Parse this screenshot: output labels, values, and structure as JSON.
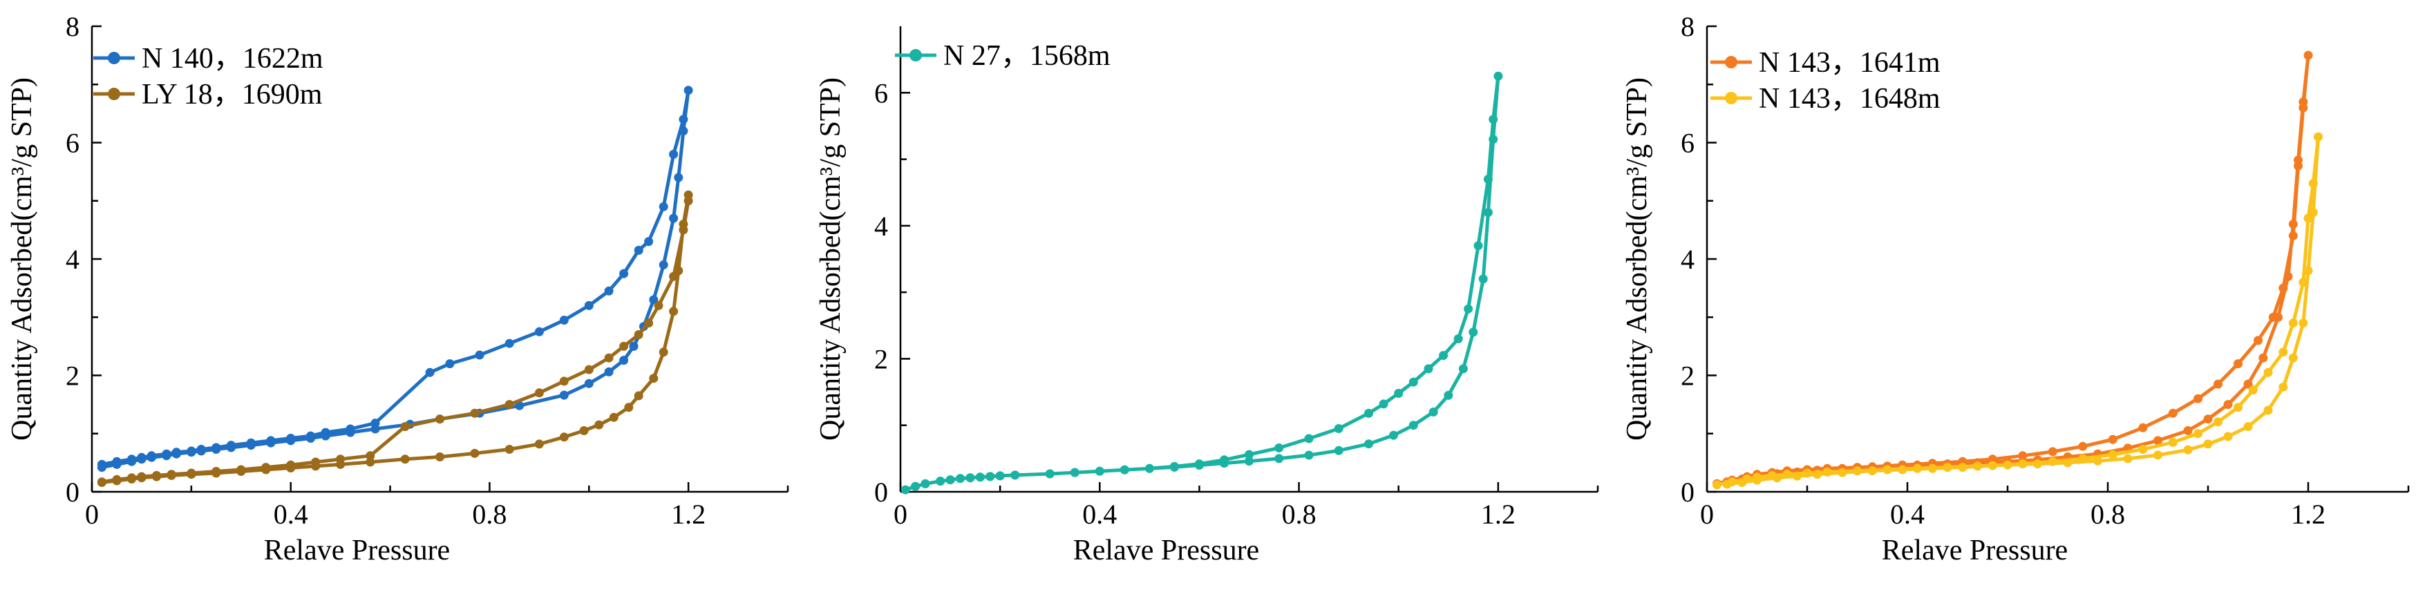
{
  "chart_data": [
    {
      "type": "line",
      "xlabel": "Relave Pressure",
      "ylabel": "Quantity Adsorbed(cm³/g STP)",
      "xlim": [
        0,
        1.4
      ],
      "ylim": [
        0,
        8
      ],
      "xticks": [
        "0",
        "0.4",
        "0.8",
        "1.2"
      ],
      "yticks": [
        "0",
        "2",
        "4",
        "6",
        "8"
      ],
      "legend_position": "top-left",
      "series": [
        {
          "name": "N 140，1622m",
          "color": "#1f6fc5",
          "x": [
            0.02,
            0.05,
            0.08,
            0.1,
            0.12,
            0.15,
            0.17,
            0.2,
            0.22,
            0.25,
            0.28,
            0.32,
            0.36,
            0.4,
            0.44,
            0.47,
            0.52,
            0.57,
            0.64,
            0.7,
            0.78,
            0.86,
            0.95,
            1.0,
            1.04,
            1.07,
            1.09,
            1.11,
            1.13,
            1.15,
            1.17,
            1.18,
            1.19,
            1.2,
            1.19,
            1.17,
            1.15,
            1.12,
            1.1,
            1.07,
            1.04,
            1.0,
            0.95,
            0.9,
            0.84,
            0.78,
            0.72,
            0.68,
            0.57,
            0.52,
            0.47,
            0.44,
            0.4,
            0.36,
            0.32,
            0.28,
            0.25,
            0.22,
            0.2,
            0.17,
            0.15,
            0.12,
            0.1,
            0.08,
            0.05,
            0.02
          ],
          "y": [
            0.42,
            0.47,
            0.52,
            0.56,
            0.59,
            0.62,
            0.65,
            0.68,
            0.7,
            0.73,
            0.76,
            0.8,
            0.84,
            0.88,
            0.92,
            0.96,
            1.02,
            1.08,
            1.16,
            1.25,
            1.35,
            1.48,
            1.66,
            1.86,
            2.06,
            2.26,
            2.5,
            2.84,
            3.3,
            3.9,
            4.7,
            5.4,
            6.2,
            6.9,
            6.4,
            5.8,
            4.9,
            4.3,
            4.15,
            3.75,
            3.45,
            3.2,
            2.95,
            2.75,
            2.55,
            2.35,
            2.2,
            2.05,
            1.18,
            1.08,
            1.02,
            0.96,
            0.92,
            0.88,
            0.84,
            0.8,
            0.76,
            0.73,
            0.7,
            0.68,
            0.65,
            0.62,
            0.59,
            0.56,
            0.52,
            0.47
          ]
        },
        {
          "name": "LY 18，1690m",
          "color": "#9c6b1a",
          "x": [
            0.02,
            0.05,
            0.08,
            0.1,
            0.13,
            0.16,
            0.2,
            0.25,
            0.3,
            0.35,
            0.4,
            0.45,
            0.5,
            0.56,
            0.63,
            0.7,
            0.77,
            0.84,
            0.9,
            0.95,
            0.99,
            1.02,
            1.05,
            1.08,
            1.1,
            1.13,
            1.15,
            1.17,
            1.18,
            1.19,
            1.2,
            1.2,
            1.19,
            1.17,
            1.14,
            1.12,
            1.1,
            1.07,
            1.04,
            1.0,
            0.95,
            0.9,
            0.84,
            0.77,
            0.7,
            0.63,
            0.56,
            0.5,
            0.45,
            0.4,
            0.35,
            0.3,
            0.25,
            0.2,
            0.16,
            0.13,
            0.1,
            0.08,
            0.05,
            0.02
          ],
          "y": [
            0.16,
            0.19,
            0.22,
            0.24,
            0.26,
            0.28,
            0.3,
            0.32,
            0.35,
            0.38,
            0.41,
            0.44,
            0.47,
            0.51,
            0.56,
            0.6,
            0.66,
            0.73,
            0.82,
            0.94,
            1.05,
            1.15,
            1.28,
            1.45,
            1.65,
            1.95,
            2.4,
            3.1,
            3.8,
            4.6,
            5.1,
            5.0,
            4.5,
            3.7,
            3.2,
            2.9,
            2.7,
            2.5,
            2.3,
            2.1,
            1.9,
            1.7,
            1.5,
            1.35,
            1.25,
            1.12,
            0.62,
            0.56,
            0.51,
            0.46,
            0.42,
            0.38,
            0.35,
            0.32,
            0.3,
            0.28,
            0.26,
            0.24,
            0.21,
            0.17
          ]
        }
      ]
    },
    {
      "type": "line",
      "xlabel": "Relave Pressure",
      "ylabel": "Quantity Adsorbed(cm³/g STP)",
      "xlim": [
        0,
        1.4
      ],
      "ylim": [
        0,
        7
      ],
      "xticks": [
        "0",
        "0.4",
        "0.8",
        "1.2"
      ],
      "yticks": [
        "0",
        "2",
        "4",
        "6"
      ],
      "legend_position": "top-left",
      "series": [
        {
          "name": "N 27，1568m",
          "color": "#1ab3a3",
          "x": [
            0.01,
            0.03,
            0.05,
            0.08,
            0.1,
            0.12,
            0.14,
            0.16,
            0.18,
            0.2,
            0.23,
            0.3,
            0.35,
            0.4,
            0.45,
            0.5,
            0.55,
            0.6,
            0.65,
            0.7,
            0.76,
            0.82,
            0.88,
            0.94,
            0.99,
            1.03,
            1.07,
            1.1,
            1.13,
            1.15,
            1.17,
            1.18,
            1.19,
            1.2,
            1.19,
            1.18,
            1.16,
            1.14,
            1.12,
            1.09,
            1.06,
            1.03,
            1.0,
            0.97,
            0.94,
            0.88,
            0.82,
            0.76,
            0.7,
            0.65,
            0.6,
            0.55,
            0.5,
            0.45,
            0.4,
            0.35,
            0.3,
            0.23,
            0.2,
            0.18,
            0.16,
            0.14,
            0.12,
            0.1,
            0.08,
            0.05,
            0.03
          ],
          "y": [
            0.03,
            0.08,
            0.12,
            0.16,
            0.18,
            0.2,
            0.21,
            0.22,
            0.23,
            0.24,
            0.25,
            0.27,
            0.29,
            0.31,
            0.33,
            0.35,
            0.37,
            0.4,
            0.43,
            0.46,
            0.5,
            0.55,
            0.62,
            0.72,
            0.85,
            1.0,
            1.2,
            1.45,
            1.85,
            2.4,
            3.2,
            4.2,
            5.3,
            6.25,
            5.6,
            4.7,
            3.7,
            2.75,
            2.3,
            2.05,
            1.85,
            1.65,
            1.48,
            1.32,
            1.18,
            0.95,
            0.8,
            0.66,
            0.56,
            0.48,
            0.42,
            0.38,
            0.35,
            0.33,
            0.31,
            0.29,
            0.27,
            0.25,
            0.24,
            0.23,
            0.22,
            0.21,
            0.2,
            0.18,
            0.16,
            0.12,
            0.08
          ]
        }
      ]
    },
    {
      "type": "line",
      "xlabel": "Relave Pressure",
      "ylabel": "Quantity Adsorbed(cm³/g STP)",
      "xlim": [
        0,
        1.4
      ],
      "ylim": [
        0,
        8
      ],
      "xticks": [
        "0",
        "0.4",
        "0.8",
        "1.2"
      ],
      "yticks": [
        "0",
        "2",
        "4",
        "6",
        "8"
      ],
      "legend_position": "top-left",
      "series": [
        {
          "name": "N 143，1641m",
          "color": "#f47a20",
          "x": [
            0.02,
            0.05,
            0.08,
            0.1,
            0.13,
            0.16,
            0.2,
            0.24,
            0.3,
            0.36,
            0.42,
            0.48,
            0.54,
            0.6,
            0.66,
            0.72,
            0.78,
            0.84,
            0.9,
            0.96,
            1.0,
            1.04,
            1.08,
            1.11,
            1.14,
            1.16,
            1.17,
            1.18,
            1.19,
            1.2,
            1.19,
            1.18,
            1.17,
            1.15,
            1.13,
            1.1,
            1.06,
            1.02,
            0.98,
            0.93,
            0.87,
            0.81,
            0.75,
            0.69,
            0.63,
            0.57,
            0.51,
            0.45,
            0.39,
            0.33,
            0.27,
            0.22,
            0.18,
            0.14,
            0.1,
            0.07,
            0.04
          ],
          "y": [
            0.14,
            0.2,
            0.26,
            0.3,
            0.33,
            0.36,
            0.38,
            0.4,
            0.42,
            0.44,
            0.46,
            0.48,
            0.5,
            0.52,
            0.55,
            0.6,
            0.65,
            0.75,
            0.88,
            1.05,
            1.25,
            1.5,
            1.85,
            2.3,
            3.0,
            3.7,
            4.6,
            5.7,
            6.7,
            7.5,
            6.6,
            5.6,
            4.4,
            3.5,
            3.0,
            2.6,
            2.2,
            1.85,
            1.6,
            1.35,
            1.1,
            0.9,
            0.78,
            0.69,
            0.62,
            0.56,
            0.52,
            0.49,
            0.46,
            0.43,
            0.4,
            0.37,
            0.34,
            0.31,
            0.27,
            0.22,
            0.17
          ]
        },
        {
          "name": "N 143，1648m",
          "color": "#fbc21a",
          "x": [
            0.02,
            0.05,
            0.08,
            0.1,
            0.13,
            0.16,
            0.2,
            0.24,
            0.3,
            0.36,
            0.42,
            0.48,
            0.54,
            0.6,
            0.66,
            0.72,
            0.78,
            0.84,
            0.9,
            0.96,
            1.0,
            1.04,
            1.08,
            1.12,
            1.15,
            1.17,
            1.19,
            1.2,
            1.21,
            1.22,
            1.21,
            1.2,
            1.19,
            1.17,
            1.15,
            1.12,
            1.09,
            1.06,
            1.02,
            0.98,
            0.93,
            0.87,
            0.81,
            0.75,
            0.69,
            0.63,
            0.57,
            0.51,
            0.45,
            0.39,
            0.33,
            0.27,
            0.22,
            0.18,
            0.14,
            0.1,
            0.07,
            0.04
          ],
          "y": [
            0.12,
            0.17,
            0.22,
            0.25,
            0.28,
            0.3,
            0.32,
            0.34,
            0.36,
            0.38,
            0.4,
            0.42,
            0.44,
            0.46,
            0.48,
            0.5,
            0.53,
            0.57,
            0.63,
            0.72,
            0.82,
            0.95,
            1.12,
            1.4,
            1.8,
            2.3,
            2.9,
            3.8,
            4.8,
            6.1,
            5.3,
            4.7,
            3.6,
            2.9,
            2.4,
            2.05,
            1.75,
            1.45,
            1.2,
            1.0,
            0.85,
            0.73,
            0.64,
            0.57,
            0.52,
            0.48,
            0.45,
            0.42,
            0.4,
            0.38,
            0.36,
            0.33,
            0.3,
            0.27,
            0.24,
            0.2,
            0.16,
            0.13
          ]
        }
      ]
    }
  ]
}
